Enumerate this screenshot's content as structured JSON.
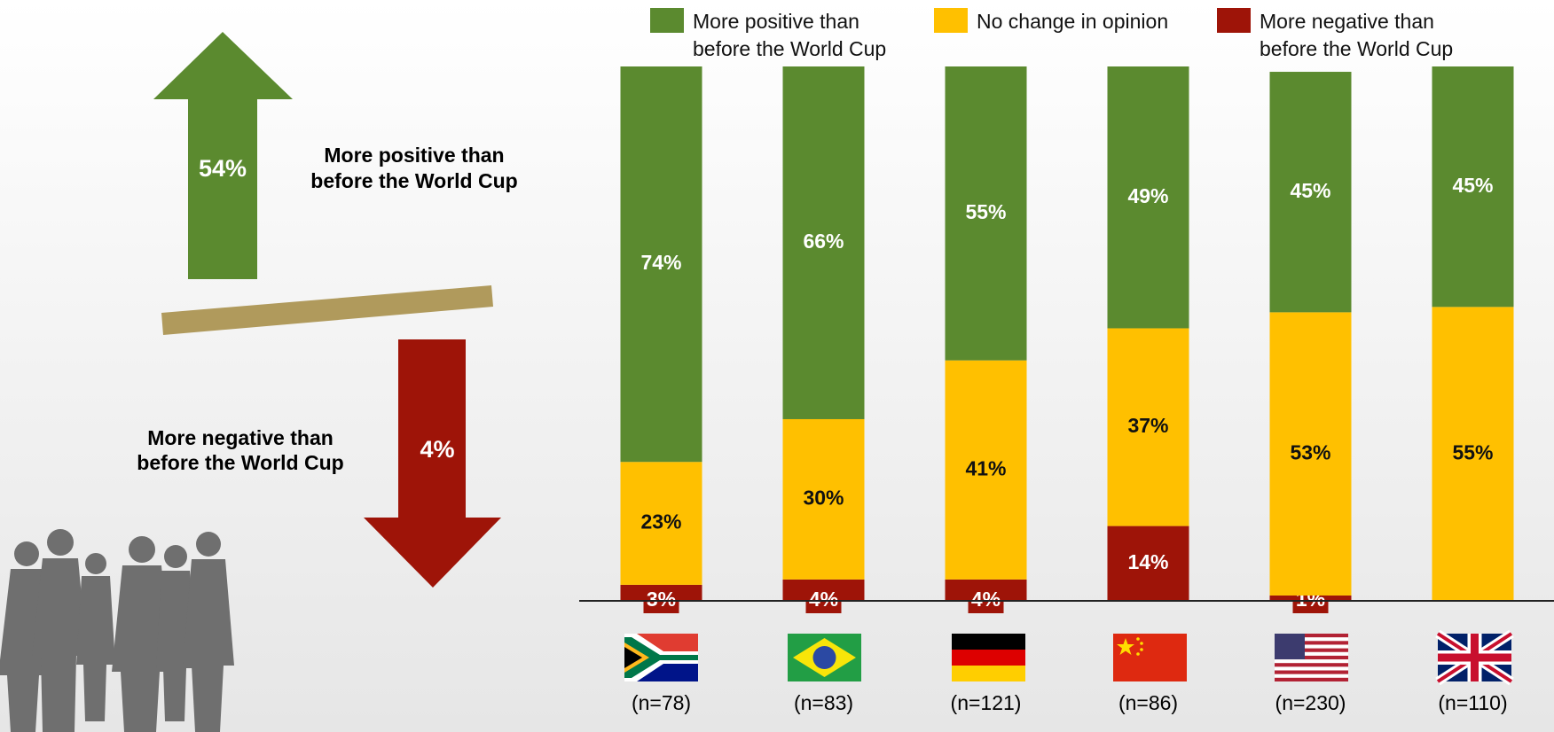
{
  "summary": {
    "positive_value": "54%",
    "positive_text": [
      "More positive than",
      "before the World Cup"
    ],
    "negative_value": "4%",
    "negative_text": [
      "More negative than",
      "before the World Cup"
    ]
  },
  "chart_data": {
    "type": "stacked_bar",
    "categories": [
      "(n=78)",
      "(n=83)",
      "(n=121)",
      "(n=86)",
      "(n=230)",
      "(n=110)"
    ],
    "series": [
      {
        "name": "More positive than before the World Cup",
        "color": "#5b8a2f",
        "values": [
          74,
          66,
          55,
          49,
          45,
          45
        ],
        "value_labels": [
          "74%",
          "66%",
          "55%",
          "49%",
          "45%",
          "45%"
        ]
      },
      {
        "name": "No change in opinion",
        "color": "#ffc000",
        "values": [
          23,
          30,
          41,
          37,
          53,
          55
        ],
        "value_labels": [
          "23%",
          "30%",
          "41%",
          "37%",
          "53%",
          "55%"
        ]
      },
      {
        "name": "More negative than before the World Cup",
        "color": "#9e1408",
        "values": [
          3,
          4,
          4,
          14,
          1,
          null
        ],
        "value_labels": [
          "3%",
          "4%",
          "4%",
          "14%",
          "1%",
          null
        ]
      }
    ],
    "ylim": [
      0,
      100
    ],
    "legend": "top"
  }
}
